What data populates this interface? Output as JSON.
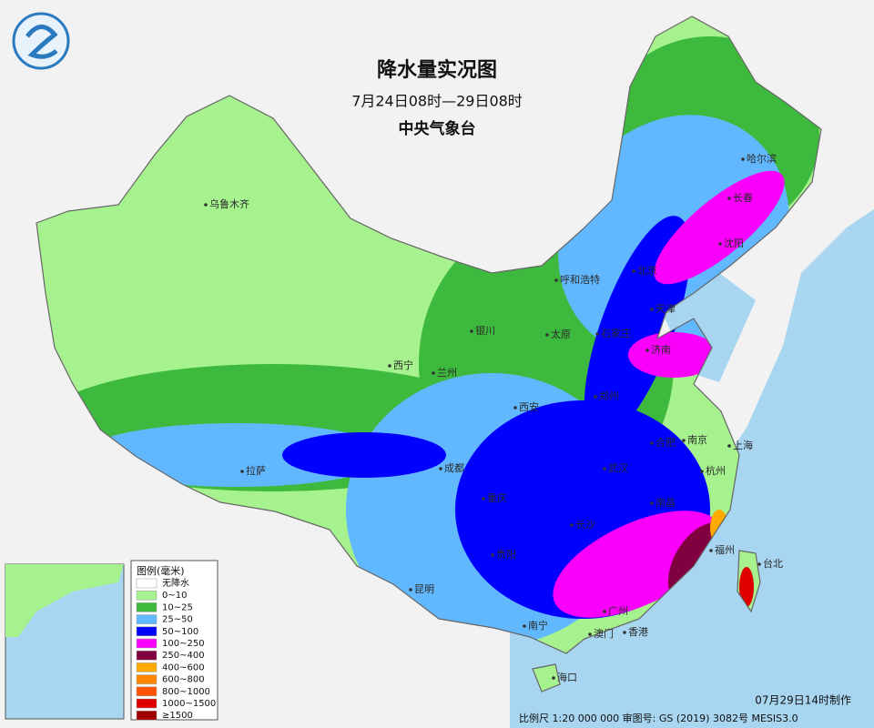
{
  "header": {
    "title": "降水量实况图",
    "subtitle": "7月24日08时—29日08时",
    "issuer": "中央气象台"
  },
  "legend": {
    "title": "图例(毫米)",
    "items": [
      {
        "label": "无降水",
        "color": "#ffffff"
      },
      {
        "label": "0~10",
        "color": "#a6f28f"
      },
      {
        "label": "10~25",
        "color": "#3dba3d"
      },
      {
        "label": "25~50",
        "color": "#61b8ff"
      },
      {
        "label": "50~100",
        "color": "#0000ff"
      },
      {
        "label": "100~250",
        "color": "#fa00fa"
      },
      {
        "label": "250~400",
        "color": "#800040"
      },
      {
        "label": "400~600",
        "color": "#ffaa00"
      },
      {
        "label": "600~800",
        "color": "#ff8800"
      },
      {
        "label": "800~1000",
        "color": "#ff5500"
      },
      {
        "label": "1000~1500",
        "color": "#e00000"
      },
      {
        "label": "≥1500",
        "color": "#a00000"
      }
    ]
  },
  "cities": [
    "乌鲁木齐",
    "哈尔滨",
    "长春",
    "沈阳",
    "北京",
    "呼和浩特",
    "天津",
    "石家庄",
    "太原",
    "济南",
    "银川",
    "西宁",
    "兰州",
    "西安",
    "郑州",
    "合肥",
    "南京",
    "上海",
    "杭州",
    "武汉",
    "拉萨",
    "成都",
    "重庆",
    "长沙",
    "南昌",
    "福州",
    "台北",
    "贵阳",
    "昆明",
    "南宁",
    "广州",
    "澳门",
    "香港",
    "海口"
  ],
  "footer": {
    "scale": "比例尺 1:20 000 000  审图号: GS (2019) 3082号  MESIS3.0",
    "made": "07月29日14时制作"
  }
}
